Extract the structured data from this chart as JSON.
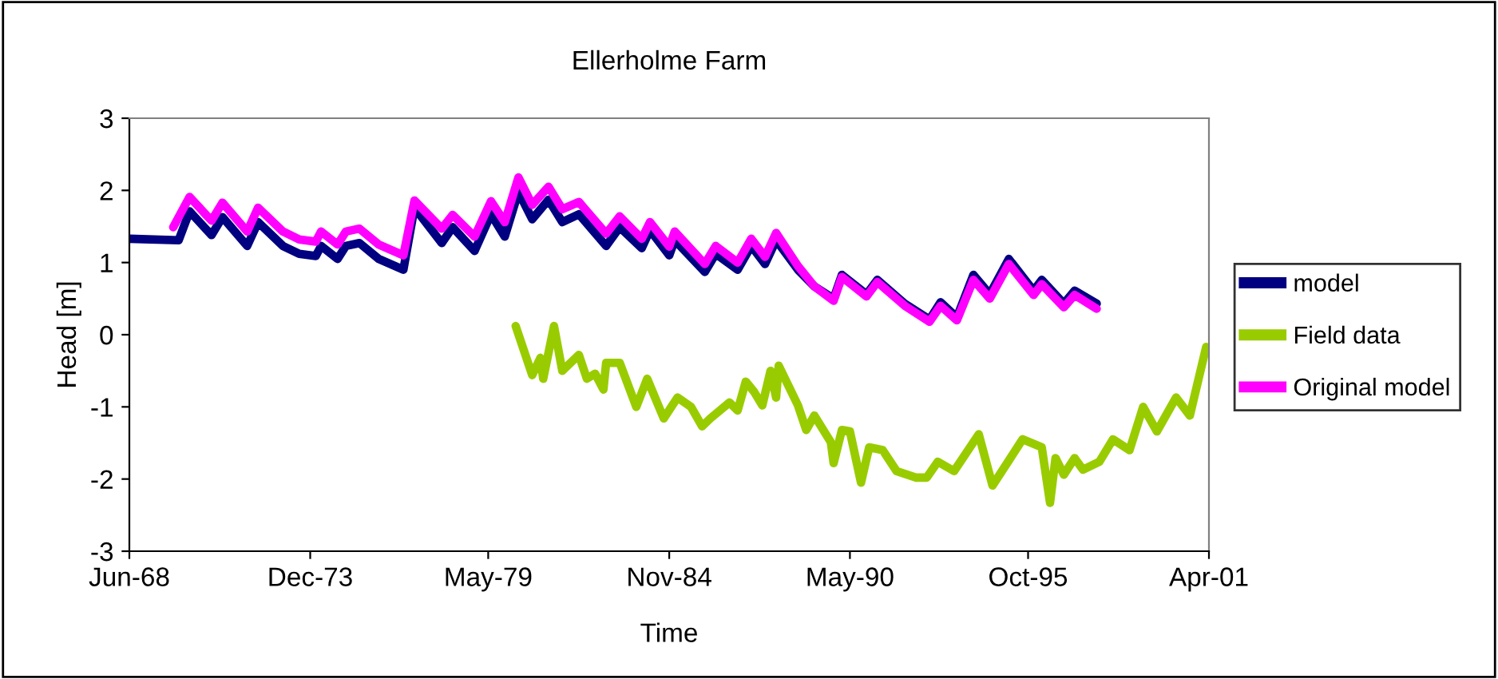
{
  "chart_data": {
    "type": "line",
    "title": "Ellerholme Farm",
    "xlabel": "Time",
    "ylabel": "Head [m]",
    "xlim": [
      "1968-06",
      "2001-04"
    ],
    "xticks": [
      {
        "value": "1968-06",
        "label": "Jun-68"
      },
      {
        "value": "1973-12",
        "label": "Dec-73"
      },
      {
        "value": "1979-05",
        "label": "May-79"
      },
      {
        "value": "1984-11",
        "label": "Nov-84"
      },
      {
        "value": "1990-05",
        "label": "May-90"
      },
      {
        "value": "1995-10",
        "label": "Oct-95"
      },
      {
        "value": "2001-04",
        "label": "Apr-01"
      }
    ],
    "ylim": [
      -3,
      3
    ],
    "yticks": [
      -3,
      -2,
      -1,
      0,
      1,
      2,
      3
    ],
    "grid": false,
    "legend": "right",
    "marker": "none",
    "line_style": "solid",
    "series": [
      {
        "name": "model",
        "color": "#000080",
        "x": [
          "1968-06",
          "1969-12",
          "1970-04",
          "1970-12",
          "1971-04",
          "1972-01",
          "1972-05",
          "1973-02",
          "1973-08",
          "1974-02",
          "1974-04",
          "1974-10",
          "1975-01",
          "1975-06",
          "1976-01",
          "1976-10",
          "1977-02",
          "1977-12",
          "1978-04",
          "1978-12",
          "1979-06",
          "1979-11",
          "1980-04",
          "1980-09",
          "1981-03",
          "1981-08",
          "1982-02",
          "1982-12",
          "1983-05",
          "1984-01",
          "1984-04",
          "1984-11",
          "1985-01",
          "1985-12",
          "1986-04",
          "1986-12",
          "1987-05",
          "1987-10",
          "1988-02",
          "1988-10",
          "1989-04",
          "1989-11",
          "1990-02",
          "1990-11",
          "1991-03",
          "1992-01",
          "1992-10",
          "1993-02",
          "1993-08",
          "1994-02",
          "1994-08",
          "1995-03",
          "1995-12",
          "1996-03",
          "1996-11",
          "1997-03",
          "1997-11"
        ],
        "values": [
          1.33,
          1.31,
          1.71,
          1.38,
          1.63,
          1.23,
          1.56,
          1.23,
          1.12,
          1.09,
          1.23,
          1.05,
          1.23,
          1.27,
          1.05,
          0.9,
          1.76,
          1.27,
          1.49,
          1.16,
          1.67,
          1.36,
          1.98,
          1.6,
          1.87,
          1.56,
          1.67,
          1.23,
          1.49,
          1.2,
          1.45,
          1.1,
          1.31,
          0.87,
          1.12,
          0.9,
          1.23,
          0.98,
          1.31,
          0.9,
          0.67,
          0.5,
          0.83,
          0.56,
          0.76,
          0.43,
          0.21,
          0.45,
          0.24,
          0.83,
          0.56,
          1.05,
          0.61,
          0.76,
          0.43,
          0.61,
          0.43
        ]
      },
      {
        "name": "Field data",
        "color": "#99cc00",
        "x": [
          "1980-03",
          "1980-09",
          "1980-12",
          "1981-01",
          "1981-05",
          "1981-08",
          "1982-02",
          "1982-05",
          "1982-08",
          "1982-11",
          "1982-12",
          "1983-05",
          "1983-11",
          "1984-03",
          "1984-09",
          "1985-02",
          "1985-07",
          "1985-11",
          "1986-02",
          "1986-09",
          "1986-12",
          "1987-03",
          "1987-06",
          "1987-09",
          "1987-12",
          "1988-02",
          "1988-03",
          "1988-10",
          "1989-01",
          "1989-04",
          "1989-10",
          "1989-11",
          "1990-02",
          "1990-05",
          "1990-09",
          "1990-12",
          "1991-05",
          "1991-10",
          "1992-05",
          "1992-09",
          "1993-01",
          "1993-07",
          "1994-04",
          "1994-09",
          "1995-08",
          "1996-03",
          "1996-06",
          "1996-08",
          "1996-11",
          "1997-03",
          "1997-06",
          "1997-12",
          "1998-05",
          "1998-11",
          "1999-04",
          "1999-09",
          "2000-04",
          "2000-09",
          "2001-03"
        ],
        "values": [
          0.12,
          -0.56,
          -0.32,
          -0.61,
          0.12,
          -0.5,
          -0.28,
          -0.61,
          -0.54,
          -0.76,
          -0.39,
          -0.39,
          -1.0,
          -0.61,
          -1.16,
          -0.87,
          -1.0,
          -1.27,
          -1.16,
          -0.94,
          -1.05,
          -0.65,
          -0.79,
          -0.98,
          -0.5,
          -0.87,
          -0.43,
          -0.98,
          -1.32,
          -1.12,
          -1.49,
          -1.78,
          -1.32,
          -1.34,
          -2.05,
          -1.56,
          -1.6,
          -1.89,
          -1.98,
          -1.98,
          -1.76,
          -1.89,
          -1.38,
          -2.09,
          -1.45,
          -1.56,
          -2.33,
          -1.71,
          -1.94,
          -1.71,
          -1.87,
          -1.76,
          -1.45,
          -1.6,
          -1.0,
          -1.34,
          -0.87,
          -1.12,
          -0.17
        ]
      },
      {
        "name": "Original model",
        "color": "#ff00ff",
        "x": [
          "1969-10",
          "1970-04",
          "1970-12",
          "1971-04",
          "1972-01",
          "1972-05",
          "1973-02",
          "1973-08",
          "1974-02",
          "1974-04",
          "1974-10",
          "1975-01",
          "1975-06",
          "1976-01",
          "1976-10",
          "1977-02",
          "1977-12",
          "1978-04",
          "1978-12",
          "1979-06",
          "1979-11",
          "1980-04",
          "1980-09",
          "1981-03",
          "1981-08",
          "1982-02",
          "1982-12",
          "1983-05",
          "1984-01",
          "1984-04",
          "1984-11",
          "1985-01",
          "1985-12",
          "1986-04",
          "1986-12",
          "1987-05",
          "1987-10",
          "1988-02",
          "1988-10",
          "1989-04",
          "1989-11",
          "1990-02",
          "1990-11",
          "1991-03",
          "1992-01",
          "1992-10",
          "1993-02",
          "1993-08",
          "1994-02",
          "1994-08",
          "1995-03",
          "1995-12",
          "1996-03",
          "1996-11",
          "1997-03",
          "1997-11"
        ],
        "values": [
          1.49,
          1.91,
          1.58,
          1.83,
          1.43,
          1.76,
          1.43,
          1.32,
          1.29,
          1.43,
          1.25,
          1.43,
          1.47,
          1.25,
          1.1,
          1.86,
          1.47,
          1.66,
          1.36,
          1.85,
          1.56,
          2.18,
          1.8,
          2.05,
          1.74,
          1.84,
          1.4,
          1.64,
          1.33,
          1.56,
          1.22,
          1.43,
          0.98,
          1.23,
          1.0,
          1.33,
          1.08,
          1.41,
          0.95,
          0.67,
          0.47,
          0.8,
          0.53,
          0.73,
          0.4,
          0.18,
          0.4,
          0.2,
          0.76,
          0.5,
          0.98,
          0.55,
          0.7,
          0.38,
          0.55,
          0.36
        ]
      }
    ]
  }
}
